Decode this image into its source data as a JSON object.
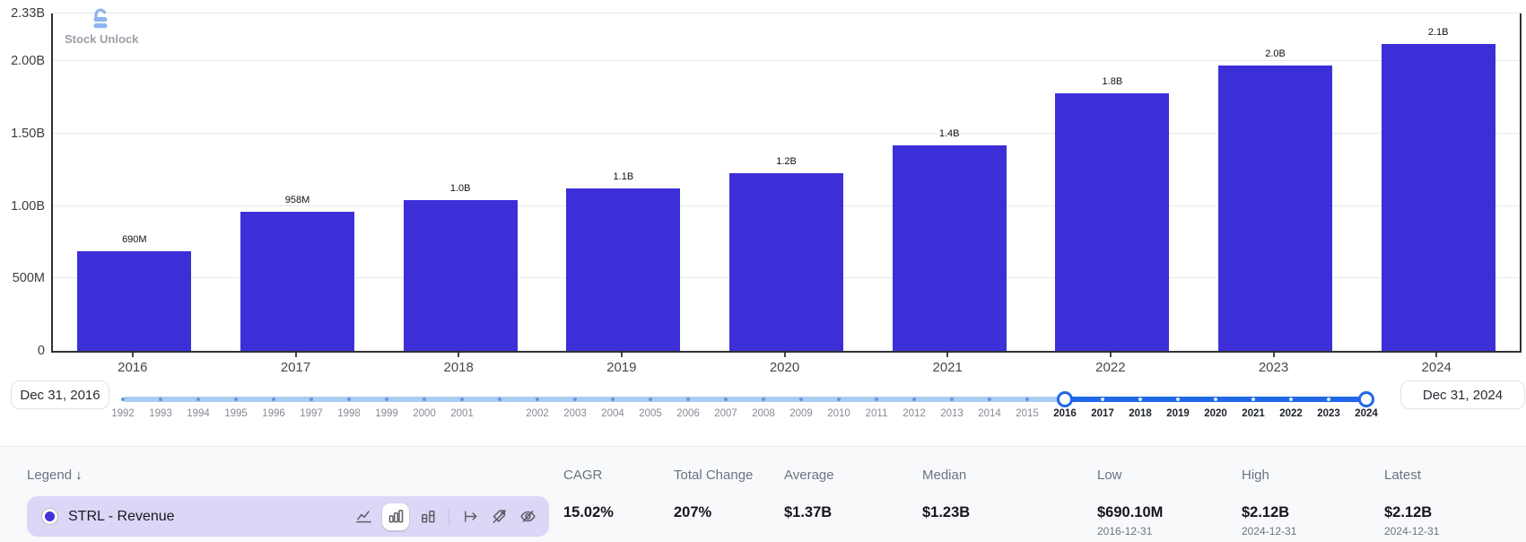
{
  "watermark": {
    "text": "Stock Unlock"
  },
  "chart_data": {
    "type": "bar",
    "series_name": "STRL - Revenue",
    "categories": [
      "2016",
      "2017",
      "2018",
      "2019",
      "2020",
      "2021",
      "2022",
      "2023",
      "2024"
    ],
    "values_billions": [
      0.69,
      0.958,
      1.04,
      1.12,
      1.23,
      1.42,
      1.78,
      1.97,
      2.12
    ],
    "bar_labels": [
      "690M",
      "958M",
      "1.0B",
      "1.1B",
      "1.2B",
      "1.4B",
      "1.8B",
      "2.0B",
      "2.1B"
    ],
    "y_ticks": [
      {
        "label": "2.33B",
        "value": 2.33
      },
      {
        "label": "2.00B",
        "value": 2.0
      },
      {
        "label": "1.50B",
        "value": 1.5
      },
      {
        "label": "1.00B",
        "value": 1.0
      },
      {
        "label": "500M",
        "value": 0.5
      },
      {
        "label": "0",
        "value": 0
      }
    ],
    "ylim": [
      0,
      2.33
    ],
    "bar_color": "#3c2fd8",
    "grid": true,
    "legend_position": "bottom"
  },
  "slider": {
    "start_label": "Dec 31, 2016",
    "end_label": "Dec 31, 2024",
    "years": [
      "1992",
      "1993",
      "1994",
      "1995",
      "1996",
      "1997",
      "1998",
      "1999",
      "2000",
      "2001",
      "",
      "2002",
      "2003",
      "2004",
      "2005",
      "2006",
      "2007",
      "2008",
      "2009",
      "2010",
      "2011",
      "2012",
      "2013",
      "2014",
      "2015",
      "2016",
      "2017",
      "2018",
      "2019",
      "2020",
      "2021",
      "2022",
      "2023",
      "2024"
    ],
    "selected_range": [
      "2016",
      "2024"
    ],
    "selected_color": "#2068e8",
    "track_color": "#abcdf4"
  },
  "legend": {
    "header": "Legend",
    "sort_icon": "↓",
    "series": {
      "name": "STRL - Revenue",
      "color": "#4634da"
    },
    "active_chart_type": "bar-chart"
  },
  "stats": {
    "columns": [
      {
        "label": "CAGR",
        "value": "15.02%",
        "date": ""
      },
      {
        "label": "Total Change",
        "value": "207%",
        "date": ""
      },
      {
        "label": "Average",
        "value": "$1.37B",
        "date": ""
      },
      {
        "label": "Median",
        "value": "$1.23B",
        "date": ""
      },
      {
        "label": "Low",
        "value": "$690.10M",
        "date": "2016-12-31"
      },
      {
        "label": "High",
        "value": "$2.12B",
        "date": "2024-12-31"
      },
      {
        "label": "Latest",
        "value": "$2.12B",
        "date": "2024-12-31"
      }
    ]
  }
}
